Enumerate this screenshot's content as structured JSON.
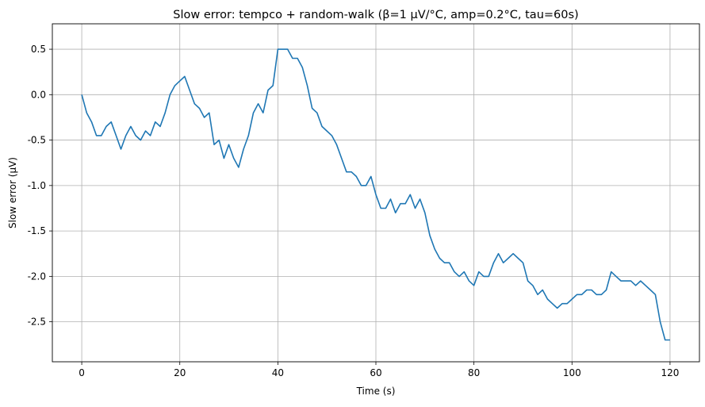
{
  "chart_data": {
    "type": "line",
    "title": "Slow error: tempco + random-walk (β=1 µV/°C, amp=0.2°C, tau=60s)",
    "xlabel": "Time (s)",
    "ylabel": "Slow error (µV)",
    "xlim": [
      -6,
      126
    ],
    "ylim": [
      -2.94,
      0.78
    ],
    "xticks": [
      0,
      20,
      40,
      60,
      80,
      100,
      120
    ],
    "xtick_labels": [
      "0",
      "20",
      "40",
      "60",
      "80",
      "100",
      "120"
    ],
    "yticks": [
      0.5,
      0.0,
      -0.5,
      -1.0,
      -1.5,
      -2.0,
      -2.5
    ],
    "ytick_labels": [
      "0.5",
      "0.0",
      "-0.5",
      "-1.0",
      "-1.5",
      "-2.0",
      "-2.5"
    ],
    "grid": true,
    "line_color": "#1f77b4",
    "series": [
      {
        "x": [
          0,
          1,
          2,
          3,
          4,
          5,
          6,
          7,
          8,
          9,
          10,
          11,
          12,
          13,
          14,
          15,
          16,
          17,
          18,
          19,
          20,
          21,
          22,
          23,
          24,
          25,
          26,
          27,
          28,
          29,
          30,
          31,
          32,
          33,
          34,
          35,
          36,
          37,
          38,
          39,
          40,
          41,
          42,
          43,
          44,
          45,
          46,
          47,
          48,
          49,
          50,
          51,
          52,
          53,
          54,
          55,
          56,
          57,
          58,
          59,
          60,
          61,
          62,
          63,
          64,
          65,
          66,
          67,
          68,
          69,
          70,
          71,
          72,
          73,
          74,
          75,
          76,
          77,
          78,
          79,
          80,
          81,
          82,
          83,
          84,
          85,
          86,
          87,
          88,
          89,
          90,
          91,
          92,
          93,
          94,
          95,
          96,
          97,
          98,
          99,
          100,
          101,
          102,
          103,
          104,
          105,
          106,
          107,
          108,
          109,
          110,
          111,
          112,
          113,
          114,
          115,
          116,
          117,
          118,
          119,
          120
        ],
        "y": [
          0.0,
          -0.2,
          -0.3,
          -0.45,
          -0.45,
          -0.35,
          -0.3,
          -0.45,
          -0.6,
          -0.45,
          -0.35,
          -0.45,
          -0.5,
          -0.4,
          -0.45,
          -0.3,
          -0.35,
          -0.2,
          0.0,
          0.1,
          0.15,
          0.2,
          0.05,
          -0.1,
          -0.15,
          -0.25,
          -0.2,
          -0.55,
          -0.5,
          -0.7,
          -0.55,
          -0.7,
          -0.8,
          -0.6,
          -0.45,
          -0.2,
          -0.1,
          -0.2,
          0.05,
          0.1,
          0.5,
          0.5,
          0.5,
          0.4,
          0.4,
          0.3,
          0.1,
          -0.15,
          -0.2,
          -0.35,
          -0.4,
          -0.45,
          -0.55,
          -0.7,
          -0.85,
          -0.85,
          -0.9,
          -1.0,
          -1.0,
          -0.9,
          -1.1,
          -1.25,
          -1.25,
          -1.15,
          -1.3,
          -1.2,
          -1.2,
          -1.1,
          -1.25,
          -1.15,
          -1.3,
          -1.55,
          -1.7,
          -1.8,
          -1.85,
          -1.85,
          -1.95,
          -2.0,
          -1.95,
          -2.05,
          -2.1,
          -1.95,
          -2.0,
          -2.0,
          -1.85,
          -1.75,
          -1.85,
          -1.8,
          -1.75,
          -1.8,
          -1.85,
          -2.05,
          -2.1,
          -2.2,
          -2.15,
          -2.25,
          -2.3,
          -2.35,
          -2.3,
          -2.3,
          -2.25,
          -2.2,
          -2.2,
          -2.15,
          -2.15,
          -2.2,
          -2.2,
          -2.15,
          -1.95,
          -2.0,
          -2.05,
          -2.05,
          -2.05,
          -2.1,
          -2.05,
          -2.1,
          -2.15,
          -2.2,
          -2.5,
          -2.7,
          -2.7
        ]
      }
    ]
  }
}
